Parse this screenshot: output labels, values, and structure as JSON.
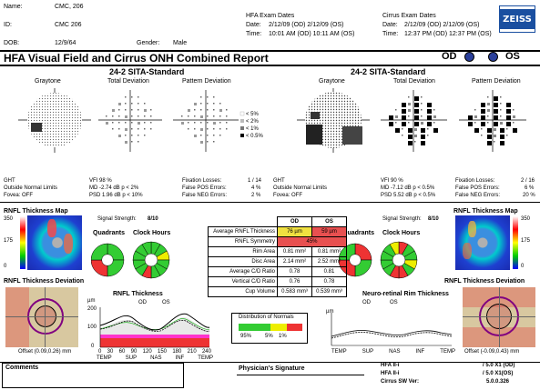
{
  "patient": {
    "name_label": "Name:",
    "name": "CMC, 206",
    "id_label": "ID:",
    "id": "CMC 206",
    "dob_label": "DOB:",
    "dob": "12/9/64",
    "gender_label": "Gender:",
    "gender": "Male"
  },
  "exam_dates": {
    "hfa_title": "HFA Exam Dates",
    "hfa_date_label": "Date:",
    "hfa_date": "2/12/09 (OD) 2/12/09 (OS)",
    "hfa_time_label": "Time:",
    "hfa_time": "10:01 AM (OD) 10:11 AM (OS)",
    "cirrus_title": "Cirrus Exam Dates",
    "cirrus_date_label": "Date:",
    "cirrus_date": "2/12/09 (OD) 2/12/09 (OS)",
    "cirrus_time_label": "Time:",
    "cirrus_time": "12:37 PM (OD) 12:37 PM (OS)"
  },
  "logo": "ZEISS",
  "report_title": "HFA Visual Field and Cirrus ONH Combined Report",
  "eye_od": "OD",
  "eye_os": "OS",
  "fields": {
    "od": {
      "title": "24-2 SITA-Standard",
      "graytone": "Graytone",
      "total": "Total Deviation",
      "pattern": "Pattern Deviation",
      "legend": [
        "< 5%",
        "< 2%",
        "< 1%",
        "< 0.5%"
      ],
      "ght_label": "GHT",
      "ght": "Outside Normal Limits",
      "fovea": "Fovea: OFF",
      "vfi": "VFI 98 %",
      "md": "MD  -2.74 dB  p < 2%",
      "psd": "PSD  1.96 dB  p < 10%",
      "fix": "Fixation Losses:",
      "fix_v": "1 / 14",
      "fpos": "False POS Errors:",
      "fpos_v": "4 %",
      "fneg": "False NEG Errors:",
      "fneg_v": "2 %"
    },
    "os": {
      "title": "24-2 SITA-Standard",
      "graytone": "Graytone",
      "total": "Total Deviation",
      "pattern": "Pattern Deviation",
      "ght_label": "GHT",
      "ght": "Outside Normal Limits",
      "fovea": "Fovea: OFF",
      "vfi": "VFI  90 %",
      "md": "MD  -7.12 dB  p < 0.5%",
      "psd": "PSD  5.52 dB  p < 0.5%",
      "fix": "Fixation Losses:",
      "fix_v": "2 / 16",
      "fpos": "False POS Errors:",
      "fpos_v": "6 %",
      "fneg": "False NEG Errors:",
      "fneg_v": "20 %"
    }
  },
  "rnfl": {
    "map_title": "RNFL Thickness Map",
    "scale_top": "350",
    "scale_mid": "175",
    "scale_bot": "0",
    "signal_od": "Signal Strength:",
    "signal_od_v": "8/10",
    "signal_os": "Signal Strength:",
    "signal_os_v": "8/10",
    "quadrants": "Quadrants",
    "clock": "Clock Hours",
    "head_od": "OD",
    "head_os": "OS",
    "rows": [
      {
        "label": "Average RNFL Thickness",
        "od": "76 µm",
        "os": "59 µm",
        "od_color": "#f0e040",
        "os_color": "#e85050"
      },
      {
        "label": "RNFL Symmetry",
        "both": "45%",
        "color": "#e85050"
      },
      {
        "label": "Rim Area",
        "od": "0.81 mm²",
        "os": "0.81 mm²"
      },
      {
        "label": "Disc Area",
        "od": "2.14 mm²",
        "os": "2.52 mm²"
      },
      {
        "label": "Average C/D Ratio",
        "od": "0.78",
        "os": "0.81"
      },
      {
        "label": "Vertical C/D Ratio",
        "od": "0.76",
        "os": "0.78"
      },
      {
        "label": "Cup Volume",
        "od": "0.583 mm³",
        "os": "0.539 mm³"
      }
    ],
    "deviation_title": "RNFL Thickness Deviation",
    "offset_od": "Offset (0.09,0.26) mm",
    "offset_os": "Offset (-0.09,0.43) mm",
    "thickness_title": "RNFL Thickness",
    "legend_od": "OD",
    "legend_os": "OS",
    "y_label": "µm",
    "y_ticks": [
      "200",
      "100",
      "0"
    ],
    "x_ticks": [
      "0",
      "30",
      "60",
      "90",
      "120",
      "150",
      "180",
      "210",
      "240"
    ],
    "x_labels": [
      "TEMP",
      "SUP",
      "NAS",
      "INF",
      "TEMP"
    ],
    "distribution_title": "Distribution of Normals",
    "distribution": [
      "95%",
      "5%",
      "1%"
    ],
    "nrim_title": "Neuro-retinal Rim Thickness",
    "nrim_y": "µm"
  },
  "footer": {
    "comments": "Comments",
    "signature": "Physician's Signature",
    "hfa1": "HFA II-i",
    "hfa1_v": "/ 5.0 X1      (OD)",
    "hfa2": "HFA II-i",
    "hfa2_v": "/ 5.0 X1(OS)",
    "cirrus": "Cirrus SW Ver:",
    "cirrus_v": "5.0.0.326"
  }
}
